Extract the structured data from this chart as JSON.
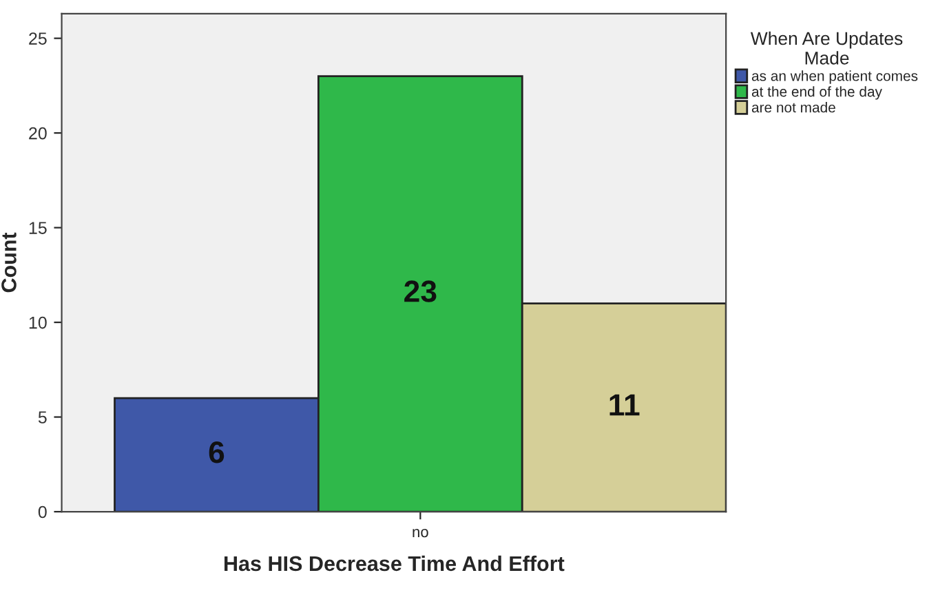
{
  "chart_data": {
    "type": "bar",
    "categories": [
      "no"
    ],
    "xlabel": "Has HIS Decrease Time And Effort",
    "ylabel": "Count",
    "legend_title": "When Are Updates\nMade",
    "series": [
      {
        "name": "as an when patient comes",
        "color": "#3f58a8",
        "values": [
          6
        ]
      },
      {
        "name": "at the end of the day",
        "color": "#2fb84a",
        "values": [
          23
        ]
      },
      {
        "name": "are not made",
        "color": "#d5cf98",
        "values": [
          11
        ]
      }
    ],
    "ylim": [
      0,
      26.3
    ],
    "yticks": [
      0,
      5,
      10,
      15,
      20,
      25
    ],
    "data_labels": true,
    "legend": "top right",
    "grid": false
  }
}
